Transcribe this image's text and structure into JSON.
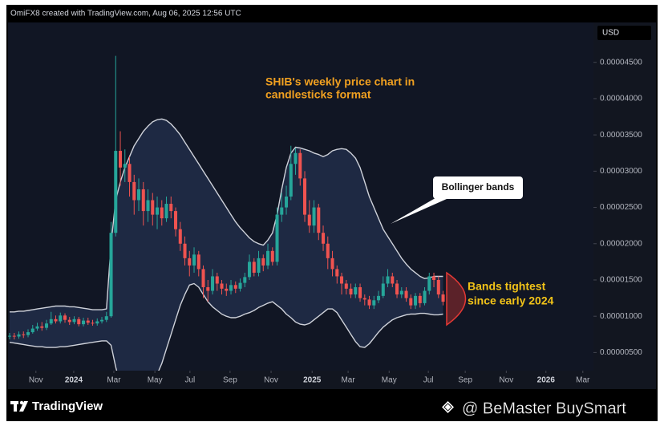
{
  "chart_data": {
    "type": "candlestick",
    "header": "OmiFX8 created with TradingView.com, Aug 06, 2025 12:56 UTC",
    "currency": "USD",
    "brand": "TradingView",
    "watermark": "@ BeMaster BuySmart",
    "annotations": {
      "chart_note": [
        "SHIB's weekly price chart in",
        "candlesticks format"
      ],
      "bands_note": "Bollinger bands",
      "tight_note": [
        "Bands tightest",
        "since early 2024"
      ]
    },
    "up_color": "#26a69a",
    "down_color": "#ef5350",
    "open": [
      7.2e-06,
      7.3e-06,
      7.2e-06,
      7.5e-06,
      7.4e-06,
      7.8e-06,
      8.3e-06,
      8.6e-06,
      8.4e-06,
      9e-06,
      9.6e-06,
      9.3e-06,
      1.01e-05,
      9.5e-06,
      9.2e-06,
      9.6e-06,
      8.9e-06,
      9.4e-06,
      9.1e-06,
      9e-06,
      9.3e-06,
      9.5e-06,
      1e-05,
      2.15e-05,
      3.28e-05,
      3.05e-05,
      3.1e-05,
      2.85e-05,
      2.6e-05,
      2.75e-05,
      2.45e-05,
      2.6e-05,
      2.4e-05,
      2.5e-05,
      2.35e-05,
      2.55e-05,
      2.45e-05,
      2.2e-05,
      2e-05,
      1.8e-05,
      1.7e-05,
      1.85e-05,
      1.65e-05,
      1.4e-05,
      1.35e-05,
      1.55e-05,
      1.45e-05,
      1.38e-05,
      1.35e-05,
      1.43e-05,
      1.38e-05,
      1.46e-05,
      1.54e-05,
      1.75e-05,
      1.6e-05,
      1.8e-05,
      1.7e-05,
      1.9e-05,
      1.75e-05,
      2.4e-05,
      2.5e-05,
      2.65e-05,
      3.1e-05,
      3.25e-05,
      2.9e-05,
      2.4e-05,
      2.25e-05,
      2.5e-05,
      2.15e-05,
      2e-05,
      1.8e-05,
      1.65e-05,
      1.55e-05,
      1.45e-05,
      1.38e-05,
      1.3e-05,
      1.4e-05,
      1.25e-05,
      1.23e-05,
      1.15e-05,
      1.22e-05,
      1.28e-05,
      1.45e-05,
      1.55e-05,
      1.45e-05,
      1.3e-05,
      1.35e-05,
      1.25e-05,
      1.15e-05,
      1.28e-05,
      1.18e-05,
      1.35e-05,
      1.55e-05,
      1.5e-05,
      1.3e-05
    ],
    "high": [
      7.7e-06,
      7.7e-06,
      7.9e-06,
      7.9e-06,
      8.2e-06,
      8.8e-06,
      9.1e-06,
      9.2e-06,
      9.5e-06,
      1.06e-05,
      1.01e-05,
      1.05e-05,
      1.04e-05,
      9.9e-06,
      1e-05,
      9.9e-06,
      9.8e-06,
      9.8e-06,
      9.5e-06,
      9.7e-06,
      9.9e-06,
      1.06e-05,
      2.3e-05,
      4.59e-05,
      3.55e-05,
      3.3e-05,
      3.2e-05,
      2.95e-05,
      2.9e-05,
      2.85e-05,
      2.75e-05,
      2.7e-05,
      2.65e-05,
      2.6e-05,
      2.65e-05,
      2.65e-05,
      2.5e-05,
      2.3e-05,
      2.1e-05,
      1.9e-05,
      1.95e-05,
      1.9e-05,
      1.7e-05,
      1.5e-05,
      1.65e-05,
      1.6e-05,
      1.5e-05,
      1.45e-05,
      1.5e-05,
      1.48e-05,
      1.52e-05,
      1.6e-05,
      1.85e-05,
      1.8e-05,
      1.9e-05,
      1.85e-05,
      2e-05,
      1.95e-05,
      2.5e-05,
      2.7e-05,
      2.8e-05,
      3.35e-05,
      3.32e-05,
      3.3e-05,
      3e-05,
      2.6e-05,
      2.6e-05,
      2.55e-05,
      2.25e-05,
      2.1e-05,
      1.9e-05,
      1.7e-05,
      1.6e-05,
      1.5e-05,
      1.45e-05,
      1.45e-05,
      1.45e-05,
      1.3e-05,
      1.28e-05,
      1.28e-05,
      1.35e-05,
      1.55e-05,
      1.65e-05,
      1.6e-05,
      1.5e-05,
      1.4e-05,
      1.4e-05,
      1.3e-05,
      1.32e-05,
      1.32e-05,
      1.4e-05,
      1.6e-05,
      1.6e-05,
      1.55e-05,
      1.35e-05
    ],
    "low": [
      6.8e-06,
      6.8e-06,
      6.9e-06,
      7e-06,
      7.1e-06,
      7.6e-06,
      8e-06,
      8e-06,
      8.1e-06,
      8.8e-06,
      9e-06,
      9e-06,
      9.1e-06,
      8.8e-06,
      8.9e-06,
      8.6e-06,
      8.6e-06,
      8.8e-06,
      8.7e-06,
      8.7e-06,
      9e-06,
      9.2e-06,
      9.8e-06,
      2.1e-05,
      2.8e-05,
      2.85e-05,
      2.65e-05,
      2.4e-05,
      2.45e-05,
      2.25e-05,
      2.3e-05,
      2.25e-05,
      2.2e-05,
      2.25e-05,
      2.3e-05,
      2.35e-05,
      2.1e-05,
      1.9e-05,
      1.7e-05,
      1.55e-05,
      1.6e-05,
      1.55e-05,
      1.25e-05,
      1.2e-05,
      1.3e-05,
      1.35e-05,
      1.3e-05,
      1.28e-05,
      1.3e-05,
      1.32e-05,
      1.34e-05,
      1.4e-05,
      1.5e-05,
      1.55e-05,
      1.55e-05,
      1.62e-05,
      1.65e-05,
      1.7e-05,
      1.7e-05,
      2.3e-05,
      2.4e-05,
      2.6e-05,
      2.95e-05,
      2.8e-05,
      2.3e-05,
      2.15e-05,
      2.15e-05,
      2.05e-05,
      1.9e-05,
      1.65e-05,
      1.55e-05,
      1.45e-05,
      1.3e-05,
      1.3e-05,
      1.25e-05,
      1.25e-05,
      1.2e-05,
      1.15e-05,
      1.1e-05,
      1.1e-05,
      1.18e-05,
      1.25e-05,
      1.4e-05,
      1.4e-05,
      1.25e-05,
      1.25e-05,
      1.2e-05,
      1.1e-05,
      1.1e-05,
      1.12e-05,
      1.15e-05,
      1.3e-05,
      1.4e-05,
      1.25e-05,
      1.15e-05
    ],
    "close": [
      7.3e-06,
      7.2e-06,
      7.5e-06,
      7.4e-06,
      7.8e-06,
      8.3e-06,
      8.6e-06,
      8.4e-06,
      9e-06,
      9.6e-06,
      9.3e-06,
      1.01e-05,
      9.5e-06,
      9.2e-06,
      9.6e-06,
      8.9e-06,
      9.4e-06,
      9.1e-06,
      9e-06,
      9.3e-06,
      9.5e-06,
      1e-05,
      2.15e-05,
      3.28e-05,
      3.05e-05,
      3.1e-05,
      2.85e-05,
      2.6e-05,
      2.75e-05,
      2.45e-05,
      2.6e-05,
      2.4e-05,
      2.5e-05,
      2.35e-05,
      2.55e-05,
      2.45e-05,
      2.2e-05,
      2e-05,
      1.8e-05,
      1.7e-05,
      1.85e-05,
      1.65e-05,
      1.4e-05,
      1.35e-05,
      1.55e-05,
      1.45e-05,
      1.38e-05,
      1.35e-05,
      1.43e-05,
      1.38e-05,
      1.46e-05,
      1.54e-05,
      1.75e-05,
      1.6e-05,
      1.8e-05,
      1.7e-05,
      1.9e-05,
      1.75e-05,
      2.4e-05,
      2.5e-05,
      2.65e-05,
      3.1e-05,
      3.25e-05,
      2.9e-05,
      2.4e-05,
      2.25e-05,
      2.5e-05,
      2.15e-05,
      2e-05,
      1.8e-05,
      1.65e-05,
      1.55e-05,
      1.45e-05,
      1.38e-05,
      1.3e-05,
      1.4e-05,
      1.25e-05,
      1.23e-05,
      1.15e-05,
      1.22e-05,
      1.28e-05,
      1.45e-05,
      1.55e-05,
      1.45e-05,
      1.3e-05,
      1.35e-05,
      1.25e-05,
      1.15e-05,
      1.28e-05,
      1.18e-05,
      1.35e-05,
      1.55e-05,
      1.5e-05,
      1.3e-05,
      1.2e-05
    ],
    "bands": {
      "color": "#cfd2da",
      "fill": "#2a3a5c",
      "upper": [
        1.06e-05,
        1.06e-05,
        1.07e-05,
        1.07e-05,
        1.08e-05,
        1.09e-05,
        1.1e-05,
        1.11e-05,
        1.12e-05,
        1.13e-05,
        1.14e-05,
        1.14e-05,
        1.14e-05,
        1.13e-05,
        1.13e-05,
        1.12e-05,
        1.11e-05,
        1.1e-05,
        1.09e-05,
        1.09e-05,
        1.09e-05,
        1.1e-05,
        2e-05,
        2.6e-05,
        2.85e-05,
        3.05e-05,
        3.2e-05,
        3.35e-05,
        3.45e-05,
        3.55e-05,
        3.62e-05,
        3.68e-05,
        3.71e-05,
        3.72e-05,
        3.7e-05,
        3.65e-05,
        3.58e-05,
        3.5e-05,
        3.4e-05,
        3.3e-05,
        3.2e-05,
        3.1e-05,
        3e-05,
        2.9e-05,
        2.8e-05,
        2.7e-05,
        2.6e-05,
        2.5e-05,
        2.4e-05,
        2.3e-05,
        2.22e-05,
        2.15e-05,
        2.08e-05,
        2.03e-05,
        2e-05,
        1.98e-05,
        2.05e-05,
        2.15e-05,
        2.4e-05,
        2.75e-05,
        3.05e-05,
        3.25e-05,
        3.33e-05,
        3.32e-05,
        3.3e-05,
        3.28e-05,
        3.25e-05,
        3.23e-05,
        3.2e-05,
        3.23e-05,
        3.28e-05,
        3.3e-05,
        3.31e-05,
        3.3e-05,
        3.25e-05,
        3.18e-05,
        3.05e-05,
        2.85e-05,
        2.65e-05,
        2.5e-05,
        2.35e-05,
        2.2e-05,
        2.1e-05,
        2e-05,
        1.9e-05,
        1.8e-05,
        1.72e-05,
        1.65e-05,
        1.6e-05,
        1.55e-05,
        1.52e-05,
        1.53e-05,
        1.55e-05,
        1.55e-05,
        1.55e-05
      ],
      "lower": [
        6.4e-06,
        6.3e-06,
        6.2e-06,
        6.1e-06,
        6e-06,
        5.9e-06,
        5.8e-06,
        5.8e-06,
        5.7e-06,
        5.7e-06,
        5.7e-06,
        5.8e-06,
        5.8e-06,
        5.9e-06,
        6e-06,
        6.1e-06,
        6.2e-06,
        6.3e-06,
        6.4e-06,
        6.5e-06,
        6.6e-06,
        6.6e-06,
        6e-06,
        3e-06,
        5e-07,
        -1.5e-06,
        -3e-06,
        -4e-06,
        -4e-06,
        -3e-06,
        -1.5e-06,
        5e-07,
        2e-06,
        3.5e-06,
        5.5e-06,
        7.5e-06,
        9.5e-06,
        1.15e-05,
        1.3e-05,
        1.43e-05,
        1.45e-05,
        1.4e-05,
        1.3e-05,
        1.2e-05,
        1.13e-05,
        1.08e-05,
        1.03e-05,
        1e-05,
        9.8e-06,
        9.8e-06,
        1e-05,
        1.03e-05,
        1.05e-05,
        1.08e-05,
        1.12e-05,
        1.15e-05,
        1.18e-05,
        1.2e-05,
        1.15e-05,
        1.1e-05,
        1.03e-05,
        9.8e-06,
        9.2e-06,
        8.9e-06,
        8.8e-06,
        9e-06,
        9.5e-06,
        1e-05,
        1.05e-05,
        1.1e-05,
        1.1e-05,
        1.05e-05,
        9.5e-06,
        8.5e-06,
        7.5e-06,
        6.5e-06,
        5.8e-06,
        5.7e-06,
        6.2e-06,
        7e-06,
        7.8e-06,
        8.5e-06,
        9e-06,
        9.5e-06,
        9.8e-06,
        1e-05,
        1.02e-05,
        1.03e-05,
        1.03e-05,
        1.04e-05,
        1.04e-05,
        1.03e-05,
        1.02e-05,
        1.02e-05,
        1.03e-05
      ]
    },
    "xlim": [
      -0.35,
      126.6
    ],
    "xticks": [
      {
        "value": 5.7,
        "label": "Nov"
      },
      {
        "value": 13.9,
        "label": "2024"
      },
      {
        "value": 22.6,
        "label": "Mar"
      },
      {
        "value": 31.5,
        "label": "May"
      },
      {
        "value": 39.1,
        "label": "Jul"
      },
      {
        "value": 47.8,
        "label": "Sep"
      },
      {
        "value": 56.7,
        "label": "Nov"
      },
      {
        "value": 65.6,
        "label": "2025"
      },
      {
        "value": 73.4,
        "label": "Mar"
      },
      {
        "value": 82.3,
        "label": "May"
      },
      {
        "value": 90.8,
        "label": "Jul"
      },
      {
        "value": 98.8,
        "label": "Sep"
      },
      {
        "value": 107.7,
        "label": "Nov"
      },
      {
        "value": 116.3,
        "label": "2026"
      },
      {
        "value": 124.3,
        "label": "Mar"
      }
    ],
    "ylim": [
      2.5e-06,
      5.05e-05
    ],
    "yticks": [
      {
        "value": 5e-06,
        "label": "0.00000500"
      },
      {
        "value": 1e-05,
        "label": "0.00001000"
      },
      {
        "value": 1.5e-05,
        "label": "0.00001500"
      },
      {
        "value": 2e-05,
        "label": "0.00002000"
      },
      {
        "value": 2.5e-05,
        "label": "0.00002500"
      },
      {
        "value": 3e-05,
        "label": "0.00003000"
      },
      {
        "value": 3.5e-05,
        "label": "0.00003500"
      },
      {
        "value": 4e-05,
        "label": "0.00004000"
      },
      {
        "value": 4.5e-05,
        "label": "0.00004500"
      }
    ],
    "grid": false
  }
}
